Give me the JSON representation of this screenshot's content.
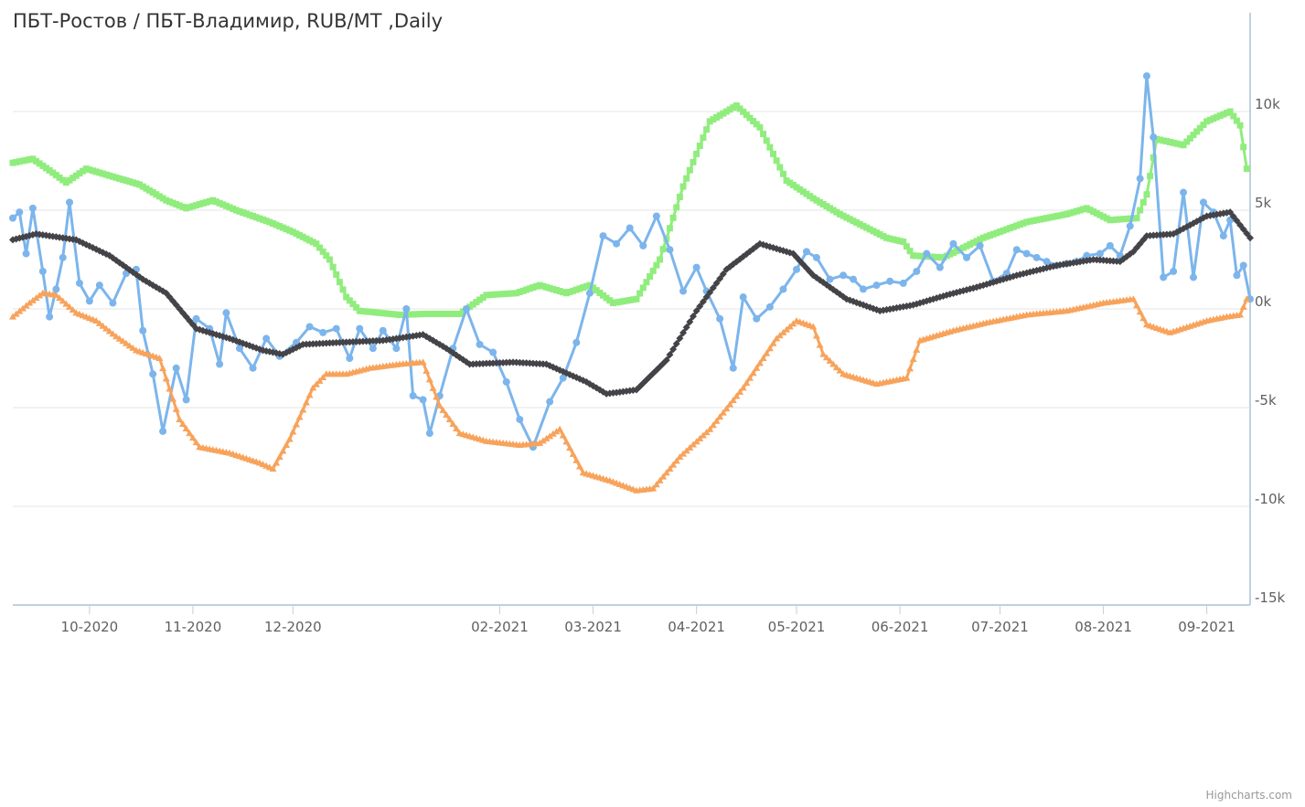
{
  "chart_data": {
    "type": "line",
    "title": "ПБТ-Ростов / ПБТ-Владимир, RUB/MT ,Daily",
    "credits": "Highcharts.com",
    "y_axis": {
      "position": "right",
      "min": -15000,
      "max": 15000,
      "ticks": [
        {
          "value": 10000,
          "label": "10k"
        },
        {
          "value": 5000,
          "label": "5k"
        },
        {
          "value": 0,
          "label": "0k"
        },
        {
          "value": -5000,
          "label": "-5k"
        },
        {
          "value": -10000,
          "label": "-10k"
        },
        {
          "value": -15000,
          "label": "-15k"
        }
      ],
      "grid": true
    },
    "x_axis": {
      "min": "2020-09-08",
      "max": "2021-09-14",
      "ticks": [
        {
          "date": "2020-10-01",
          "label": "10-2020"
        },
        {
          "date": "2020-11-01",
          "label": "11-2020"
        },
        {
          "date": "2020-12-01",
          "label": "12-2020"
        },
        {
          "date": "2021-02-01",
          "label": "02-2021"
        },
        {
          "date": "2021-03-01",
          "label": "03-2021"
        },
        {
          "date": "2021-04-01",
          "label": "04-2021"
        },
        {
          "date": "2021-05-01",
          "label": "05-2021"
        },
        {
          "date": "2021-06-01",
          "label": "06-2021"
        },
        {
          "date": "2021-07-01",
          "label": "07-2021"
        },
        {
          "date": "2021-08-01",
          "label": "08-2021"
        },
        {
          "date": "2021-09-01",
          "label": "09-2021"
        }
      ]
    },
    "series": [
      {
        "color": "#90ed7d",
        "marker": "square",
        "points": [
          [
            "2020-09-08",
            7400
          ],
          [
            "2020-09-14",
            7600
          ],
          [
            "2020-09-20",
            6900
          ],
          [
            "2020-09-24",
            6400
          ],
          [
            "2020-09-30",
            7100
          ],
          [
            "2020-10-08",
            6700
          ],
          [
            "2020-10-16",
            6300
          ],
          [
            "2020-10-24",
            5500
          ],
          [
            "2020-10-30",
            5100
          ],
          [
            "2020-11-07",
            5500
          ],
          [
            "2020-11-14",
            5000
          ],
          [
            "2020-11-24",
            4400
          ],
          [
            "2020-12-01",
            3900
          ],
          [
            "2020-12-08",
            3300
          ],
          [
            "2020-12-12",
            2500
          ],
          [
            "2020-12-17",
            600
          ],
          [
            "2020-12-21",
            -100
          ],
          [
            "2021-01-02",
            -300
          ],
          [
            "2021-01-10",
            -250
          ],
          [
            "2021-01-20",
            -250
          ],
          [
            "2021-01-28",
            700
          ],
          [
            "2021-02-06",
            800
          ],
          [
            "2021-02-13",
            1200
          ],
          [
            "2021-02-21",
            800
          ],
          [
            "2021-02-28",
            1200
          ],
          [
            "2021-03-07",
            300
          ],
          [
            "2021-03-14",
            500
          ],
          [
            "2021-03-21",
            2500
          ],
          [
            "2021-03-28",
            6200
          ],
          [
            "2021-04-05",
            9500
          ],
          [
            "2021-04-13",
            10300
          ],
          [
            "2021-04-20",
            9200
          ],
          [
            "2021-04-28",
            6500
          ],
          [
            "2021-05-06",
            5600
          ],
          [
            "2021-05-14",
            4800
          ],
          [
            "2021-05-21",
            4200
          ],
          [
            "2021-05-28",
            3600
          ],
          [
            "2021-06-02",
            3400
          ],
          [
            "2021-06-05",
            2700
          ],
          [
            "2021-06-14",
            2600
          ],
          [
            "2021-06-26",
            3600
          ],
          [
            "2021-07-09",
            4400
          ],
          [
            "2021-07-21",
            4800
          ],
          [
            "2021-07-27",
            5100
          ],
          [
            "2021-08-03",
            4500
          ],
          [
            "2021-08-11",
            4600
          ],
          [
            "2021-08-14",
            5800
          ],
          [
            "2021-08-17",
            8600
          ],
          [
            "2021-08-25",
            8300
          ],
          [
            "2021-09-01",
            9500
          ],
          [
            "2021-09-08",
            10000
          ],
          [
            "2021-09-11",
            9300
          ],
          [
            "2021-09-13",
            7100
          ]
        ]
      },
      {
        "color": "#7cb5ec",
        "marker": "circle",
        "points": [
          [
            "2020-09-08",
            4600
          ],
          [
            "2020-09-10",
            4900
          ],
          [
            "2020-09-12",
            2800
          ],
          [
            "2020-09-14",
            5100
          ],
          [
            "2020-09-17",
            1900
          ],
          [
            "2020-09-19",
            -400
          ],
          [
            "2020-09-21",
            1000
          ],
          [
            "2020-09-23",
            2600
          ],
          [
            "2020-09-25",
            5400
          ],
          [
            "2020-09-28",
            1300
          ],
          [
            "2020-10-01",
            400
          ],
          [
            "2020-10-04",
            1200
          ],
          [
            "2020-10-08",
            300
          ],
          [
            "2020-10-12",
            1800
          ],
          [
            "2020-10-15",
            2000
          ],
          [
            "2020-10-17",
            -1100
          ],
          [
            "2020-10-20",
            -3300
          ],
          [
            "2020-10-23",
            -6200
          ],
          [
            "2020-10-27",
            -3000
          ],
          [
            "2020-10-30",
            -4600
          ],
          [
            "2020-11-02",
            -500
          ],
          [
            "2020-11-06",
            -1000
          ],
          [
            "2020-11-09",
            -2800
          ],
          [
            "2020-11-11",
            -200
          ],
          [
            "2020-11-15",
            -2000
          ],
          [
            "2020-11-19",
            -3000
          ],
          [
            "2020-11-23",
            -1500
          ],
          [
            "2020-11-27",
            -2400
          ],
          [
            "2020-12-02",
            -1700
          ],
          [
            "2020-12-06",
            -900
          ],
          [
            "2020-12-10",
            -1200
          ],
          [
            "2020-12-14",
            -1000
          ],
          [
            "2020-12-18",
            -2500
          ],
          [
            "2020-12-21",
            -1000
          ],
          [
            "2020-12-25",
            -2000
          ],
          [
            "2020-12-28",
            -1100
          ],
          [
            "2021-01-01",
            -2000
          ],
          [
            "2021-01-04",
            0
          ],
          [
            "2021-01-06",
            -4400
          ],
          [
            "2021-01-09",
            -4600
          ],
          [
            "2021-01-11",
            -6300
          ],
          [
            "2021-01-14",
            -4400
          ],
          [
            "2021-01-18",
            -2000
          ],
          [
            "2021-01-22",
            0
          ],
          [
            "2021-01-26",
            -1800
          ],
          [
            "2021-01-30",
            -2200
          ],
          [
            "2021-02-03",
            -3700
          ],
          [
            "2021-02-07",
            -5600
          ],
          [
            "2021-02-11",
            -7000
          ],
          [
            "2021-02-16",
            -4700
          ],
          [
            "2021-02-20",
            -3500
          ],
          [
            "2021-02-24",
            -1700
          ],
          [
            "2021-02-28",
            800
          ],
          [
            "2021-03-04",
            3700
          ],
          [
            "2021-03-08",
            3300
          ],
          [
            "2021-03-12",
            4100
          ],
          [
            "2021-03-16",
            3200
          ],
          [
            "2021-03-20",
            4700
          ],
          [
            "2021-03-24",
            3000
          ],
          [
            "2021-03-28",
            900
          ],
          [
            "2021-04-01",
            2100
          ],
          [
            "2021-04-04",
            900
          ],
          [
            "2021-04-08",
            -500
          ],
          [
            "2021-04-12",
            -3000
          ],
          [
            "2021-04-15",
            600
          ],
          [
            "2021-04-19",
            -500
          ],
          [
            "2021-04-23",
            100
          ],
          [
            "2021-04-27",
            1000
          ],
          [
            "2021-05-01",
            2000
          ],
          [
            "2021-05-04",
            2900
          ],
          [
            "2021-05-07",
            2600
          ],
          [
            "2021-05-11",
            1500
          ],
          [
            "2021-05-15",
            1700
          ],
          [
            "2021-05-18",
            1500
          ],
          [
            "2021-05-21",
            1000
          ],
          [
            "2021-05-25",
            1200
          ],
          [
            "2021-05-29",
            1400
          ],
          [
            "2021-06-02",
            1300
          ],
          [
            "2021-06-06",
            1900
          ],
          [
            "2021-06-09",
            2800
          ],
          [
            "2021-06-13",
            2100
          ],
          [
            "2021-06-17",
            3300
          ],
          [
            "2021-06-21",
            2600
          ],
          [
            "2021-06-25",
            3200
          ],
          [
            "2021-06-29",
            1400
          ],
          [
            "2021-07-03",
            1800
          ],
          [
            "2021-07-06",
            3000
          ],
          [
            "2021-07-09",
            2800
          ],
          [
            "2021-07-12",
            2600
          ],
          [
            "2021-07-15",
            2400
          ],
          [
            "2021-07-18",
            2200
          ],
          [
            "2021-07-21",
            2300
          ],
          [
            "2021-07-24",
            2400
          ],
          [
            "2021-07-27",
            2700
          ],
          [
            "2021-07-31",
            2800
          ],
          [
            "2021-08-03",
            3200
          ],
          [
            "2021-08-06",
            2700
          ],
          [
            "2021-08-09",
            4200
          ],
          [
            "2021-08-12",
            6600
          ],
          [
            "2021-08-14",
            11800
          ],
          [
            "2021-08-16",
            8700
          ],
          [
            "2021-08-19",
            1600
          ],
          [
            "2021-08-22",
            1900
          ],
          [
            "2021-08-25",
            5900
          ],
          [
            "2021-08-28",
            1600
          ],
          [
            "2021-08-31",
            5400
          ],
          [
            "2021-09-03",
            4900
          ],
          [
            "2021-09-06",
            3700
          ],
          [
            "2021-09-08",
            4500
          ],
          [
            "2021-09-10",
            1700
          ],
          [
            "2021-09-12",
            2200
          ],
          [
            "2021-09-14",
            500
          ]
        ]
      },
      {
        "color": "#434348",
        "marker": "diamond",
        "points": [
          [
            "2020-09-08",
            3500
          ],
          [
            "2020-09-15",
            3800
          ],
          [
            "2020-09-27",
            3500
          ],
          [
            "2020-10-07",
            2700
          ],
          [
            "2020-10-17",
            1500
          ],
          [
            "2020-10-24",
            800
          ],
          [
            "2020-11-02",
            -1000
          ],
          [
            "2020-11-12",
            -1500
          ],
          [
            "2020-11-22",
            -2100
          ],
          [
            "2020-11-28",
            -2300
          ],
          [
            "2020-12-04",
            -1800
          ],
          [
            "2020-12-15",
            -1700
          ],
          [
            "2020-12-28",
            -1600
          ],
          [
            "2021-01-09",
            -1300
          ],
          [
            "2021-01-16",
            -2000
          ],
          [
            "2021-01-23",
            -2800
          ],
          [
            "2021-02-05",
            -2700
          ],
          [
            "2021-02-15",
            -2800
          ],
          [
            "2021-02-27",
            -3700
          ],
          [
            "2021-03-05",
            -4300
          ],
          [
            "2021-03-14",
            -4100
          ],
          [
            "2021-03-23",
            -2600
          ],
          [
            "2021-04-01",
            -100
          ],
          [
            "2021-04-10",
            2000
          ],
          [
            "2021-04-20",
            3300
          ],
          [
            "2021-04-30",
            2800
          ],
          [
            "2021-05-06",
            1700
          ],
          [
            "2021-05-16",
            500
          ],
          [
            "2021-05-26",
            -100
          ],
          [
            "2021-06-05",
            200
          ],
          [
            "2021-06-15",
            700
          ],
          [
            "2021-06-24",
            1100
          ],
          [
            "2021-07-06",
            1700
          ],
          [
            "2021-07-18",
            2200
          ],
          [
            "2021-07-29",
            2500
          ],
          [
            "2021-08-06",
            2400
          ],
          [
            "2021-08-10",
            2900
          ],
          [
            "2021-08-14",
            3700
          ],
          [
            "2021-08-22",
            3800
          ],
          [
            "2021-09-01",
            4700
          ],
          [
            "2021-09-08",
            4900
          ],
          [
            "2021-09-14",
            3600
          ]
        ]
      },
      {
        "color": "#f7a35c",
        "marker": "triangle",
        "points": [
          [
            "2020-09-08",
            -400
          ],
          [
            "2020-09-13",
            300
          ],
          [
            "2020-09-17",
            800
          ],
          [
            "2020-09-21",
            700
          ],
          [
            "2020-09-27",
            -200
          ],
          [
            "2020-10-03",
            -600
          ],
          [
            "2020-10-09",
            -1400
          ],
          [
            "2020-10-15",
            -2100
          ],
          [
            "2020-10-22",
            -2500
          ],
          [
            "2020-10-28",
            -5600
          ],
          [
            "2020-11-03",
            -7000
          ],
          [
            "2020-11-12",
            -7300
          ],
          [
            "2020-11-21",
            -7800
          ],
          [
            "2020-11-25",
            -8100
          ],
          [
            "2020-11-30",
            -6600
          ],
          [
            "2020-12-07",
            -4000
          ],
          [
            "2020-12-11",
            -3300
          ],
          [
            "2020-12-17",
            -3300
          ],
          [
            "2020-12-24",
            -3000
          ],
          [
            "2021-01-02",
            -2800
          ],
          [
            "2021-01-09",
            -2700
          ],
          [
            "2021-01-14",
            -4900
          ],
          [
            "2021-01-20",
            -6300
          ],
          [
            "2021-01-28",
            -6700
          ],
          [
            "2021-02-07",
            -6900
          ],
          [
            "2021-02-13",
            -6800
          ],
          [
            "2021-02-19",
            -6100
          ],
          [
            "2021-02-26",
            -8300
          ],
          [
            "2021-03-06",
            -8700
          ],
          [
            "2021-03-14",
            -9200
          ],
          [
            "2021-03-19",
            -9100
          ],
          [
            "2021-03-27",
            -7500
          ],
          [
            "2021-04-05",
            -6100
          ],
          [
            "2021-04-15",
            -4000
          ],
          [
            "2021-04-25",
            -1500
          ],
          [
            "2021-05-01",
            -600
          ],
          [
            "2021-05-06",
            -900
          ],
          [
            "2021-05-09",
            -2300
          ],
          [
            "2021-05-15",
            -3300
          ],
          [
            "2021-05-25",
            -3800
          ],
          [
            "2021-06-03",
            -3500
          ],
          [
            "2021-06-07",
            -1600
          ],
          [
            "2021-06-17",
            -1100
          ],
          [
            "2021-06-27",
            -700
          ],
          [
            "2021-07-09",
            -300
          ],
          [
            "2021-07-21",
            -100
          ],
          [
            "2021-08-01",
            300
          ],
          [
            "2021-08-10",
            500
          ],
          [
            "2021-08-14",
            -800
          ],
          [
            "2021-08-21",
            -1200
          ],
          [
            "2021-09-01",
            -600
          ],
          [
            "2021-09-07",
            -400
          ],
          [
            "2021-09-11",
            -300
          ],
          [
            "2021-09-13",
            500
          ]
        ]
      }
    ]
  }
}
